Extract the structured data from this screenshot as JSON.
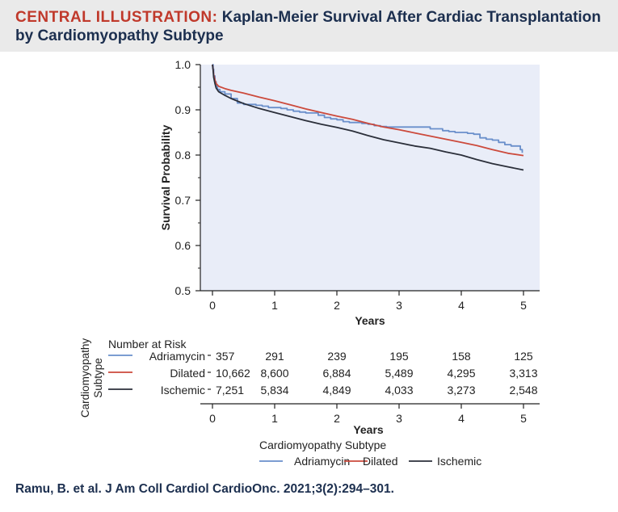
{
  "header": {
    "label": "CENTRAL ILLUSTRATION:",
    "title": "Kaplan-Meier Survival After Cardiac Transplantation by Cardiomyopathy Subtype"
  },
  "citation": "Ramu, B. et al. J Am Coll Cardiol CardioOnc. 2021;3(2):294–301.",
  "chart_data": {
    "type": "line",
    "title": "",
    "xlabel": "Years",
    "ylabel": "Survival Probability",
    "xlim": [
      0,
      5
    ],
    "ylim": [
      0.5,
      1.0
    ],
    "x_ticks": [
      0,
      1,
      2,
      3,
      4,
      5
    ],
    "y_ticks": [
      0.5,
      0.6,
      0.7,
      0.8,
      0.9,
      1.0
    ],
    "y_tick_labels": [
      "0.5",
      "0.6",
      "0.7",
      "0.8",
      "0.9",
      "1.0"
    ],
    "series": [
      {
        "name": "Adriamycin",
        "color": "#6a8fcb",
        "step": true,
        "x": [
          0,
          0.01,
          0.02,
          0.04,
          0.06,
          0.08,
          0.12,
          0.2,
          0.3,
          0.4,
          0.5,
          0.6,
          0.7,
          0.8,
          0.9,
          1.0,
          1.1,
          1.2,
          1.3,
          1.4,
          1.5,
          1.6,
          1.7,
          1.8,
          1.9,
          2.0,
          2.1,
          2.2,
          2.3,
          2.4,
          2.5,
          2.6,
          2.7,
          2.8,
          2.9,
          3.0,
          3.1,
          3.2,
          3.3,
          3.4,
          3.5,
          3.6,
          3.7,
          3.8,
          3.9,
          4.0,
          4.1,
          4.2,
          4.3,
          4.4,
          4.5,
          4.6,
          4.7,
          4.8,
          4.9,
          4.95,
          4.98
        ],
        "y": [
          1.0,
          0.99,
          0.975,
          0.962,
          0.952,
          0.945,
          0.94,
          0.935,
          0.925,
          0.915,
          0.912,
          0.912,
          0.91,
          0.908,
          0.905,
          0.905,
          0.903,
          0.9,
          0.897,
          0.895,
          0.893,
          0.893,
          0.888,
          0.883,
          0.88,
          0.878,
          0.874,
          0.872,
          0.872,
          0.87,
          0.868,
          0.865,
          0.863,
          0.862,
          0.862,
          0.862,
          0.862,
          0.862,
          0.862,
          0.862,
          0.858,
          0.858,
          0.854,
          0.852,
          0.85,
          0.85,
          0.848,
          0.846,
          0.838,
          0.835,
          0.833,
          0.828,
          0.823,
          0.82,
          0.82,
          0.812,
          0.805
        ]
      },
      {
        "name": "Dilated",
        "color": "#cc4a3c",
        "step": false,
        "x": [
          0,
          0.01,
          0.02,
          0.04,
          0.06,
          0.1,
          0.2,
          0.3,
          0.5,
          0.75,
          1.0,
          1.25,
          1.5,
          1.75,
          2.0,
          2.25,
          2.5,
          2.75,
          3.0,
          3.25,
          3.5,
          3.75,
          4.0,
          4.25,
          4.5,
          4.75,
          5.0
        ],
        "y": [
          1.0,
          0.99,
          0.978,
          0.966,
          0.958,
          0.952,
          0.947,
          0.943,
          0.937,
          0.928,
          0.92,
          0.911,
          0.902,
          0.894,
          0.886,
          0.879,
          0.87,
          0.862,
          0.856,
          0.849,
          0.842,
          0.835,
          0.828,
          0.821,
          0.812,
          0.804,
          0.799
        ]
      },
      {
        "name": "Ischemic",
        "color": "#2b2f3a",
        "step": false,
        "x": [
          0,
          0.01,
          0.02,
          0.04,
          0.06,
          0.1,
          0.2,
          0.3,
          0.5,
          0.75,
          1.0,
          1.25,
          1.5,
          1.75,
          2.0,
          2.25,
          2.5,
          2.75,
          3.0,
          3.25,
          3.5,
          3.75,
          4.0,
          4.25,
          4.5,
          4.75,
          5.0
        ],
        "y": [
          1.0,
          0.988,
          0.972,
          0.958,
          0.948,
          0.94,
          0.932,
          0.925,
          0.914,
          0.903,
          0.894,
          0.885,
          0.876,
          0.868,
          0.861,
          0.853,
          0.843,
          0.834,
          0.827,
          0.82,
          0.815,
          0.807,
          0.8,
          0.79,
          0.781,
          0.774,
          0.767
        ]
      }
    ],
    "risk_table": {
      "title": "Number at Risk",
      "side_label": "Cardiomyopathy Subtype",
      "xlabel": "Years",
      "rows": [
        {
          "name": "Adriamycin",
          "color": "#6a8fcb",
          "values": [
            "357",
            "291",
            "239",
            "195",
            "158",
            "125"
          ]
        },
        {
          "name": "Dilated",
          "color": "#cc4a3c",
          "values": [
            "10,662",
            "8,600",
            "6,884",
            "5,489",
            "4,295",
            "3,313"
          ]
        },
        {
          "name": "Ischemic",
          "color": "#2b2f3a",
          "values": [
            "7,251",
            "5,834",
            "4,849",
            "4,033",
            "3,273",
            "2,548"
          ]
        }
      ]
    },
    "legend": {
      "title": "Cardiomyopathy Subtype",
      "position": "bottom",
      "entries": [
        {
          "name": "Adriamycin",
          "color": "#6a8fcb"
        },
        {
          "name": "Dilated",
          "color": "#cc4a3c"
        },
        {
          "name": "Ischemic",
          "color": "#2b2f3a"
        }
      ]
    }
  }
}
